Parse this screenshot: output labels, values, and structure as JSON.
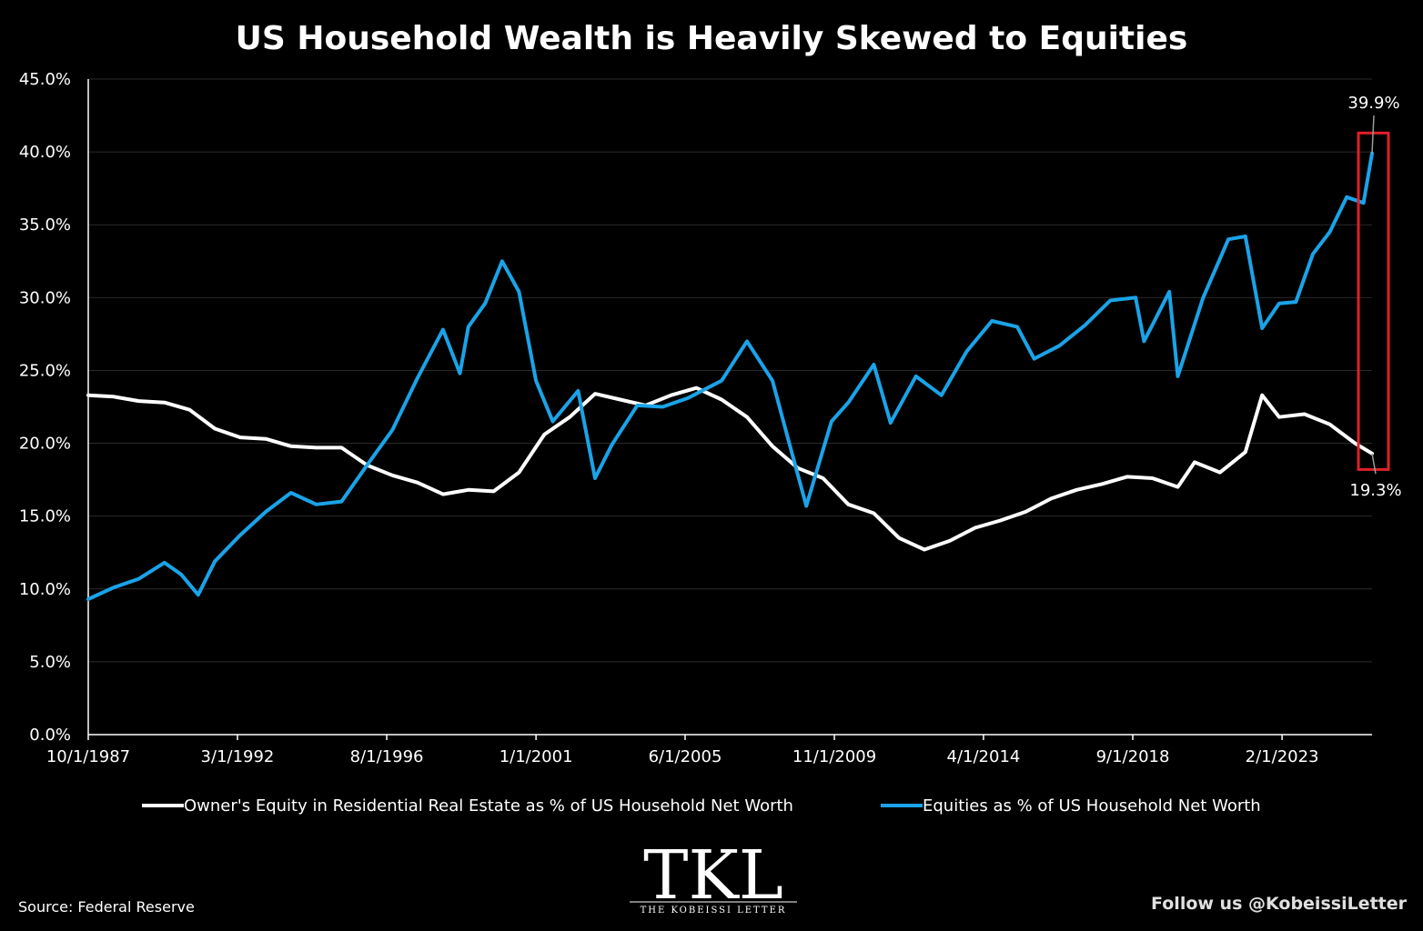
{
  "colors": {
    "background": "#000000",
    "text": "#ffffff",
    "grid": "#2a2a2a",
    "real_estate_line": "#ffffff",
    "equities_line": "#1aa3e8",
    "highlight_box": "#e0202a"
  },
  "source": "Source: Federal Reserve",
  "follow": "Follow us @KobeissiLetter",
  "logo": {
    "mark": "TKL",
    "name": "THE KOBEISSI LETTER"
  },
  "chart_data": {
    "type": "line",
    "title": "US Household Wealth is Heavily Skewed to Equities",
    "xlabel": "",
    "ylabel": "",
    "ylim": [
      0,
      45
    ],
    "grid": true,
    "legend_position": "bottom",
    "y_ticks": [
      "0.0%",
      "5.0%",
      "10.0%",
      "15.0%",
      "20.0%",
      "25.0%",
      "30.0%",
      "35.0%",
      "40.0%",
      "45.0%"
    ],
    "x_ticks": [
      "10/1/1987",
      "3/1/1992",
      "8/1/1996",
      "1/1/2001",
      "6/1/2005",
      "11/1/2009",
      "4/1/2014",
      "9/1/2018",
      "2/1/2023"
    ],
    "x_range": [
      "10/1/1987",
      "1/1/2025"
    ],
    "series": [
      {
        "name": "Owner's Equity in Residential Real Estate as % of US Household Net Worth",
        "color": "#ffffff",
        "points": [
          [
            "1987-10-01",
            23.3
          ],
          [
            "1988-07-01",
            23.2
          ],
          [
            "1989-04-01",
            22.9
          ],
          [
            "1990-01-01",
            22.8
          ],
          [
            "1990-10-01",
            22.3
          ],
          [
            "1991-07-01",
            21.0
          ],
          [
            "1992-04-01",
            20.4
          ],
          [
            "1993-01-01",
            20.3
          ],
          [
            "1993-10-01",
            19.8
          ],
          [
            "1994-07-01",
            19.7
          ],
          [
            "1995-04-01",
            19.7
          ],
          [
            "1996-01-01",
            18.5
          ],
          [
            "1996-10-01",
            17.8
          ],
          [
            "1997-07-01",
            17.3
          ],
          [
            "1998-04-01",
            16.5
          ],
          [
            "1999-01-01",
            16.8
          ],
          [
            "1999-10-01",
            16.7
          ],
          [
            "2000-07-01",
            18.0
          ],
          [
            "2001-04-01",
            20.6
          ],
          [
            "2002-01-01",
            21.8
          ],
          [
            "2002-10-01",
            23.4
          ],
          [
            "2003-07-01",
            23.0
          ],
          [
            "2004-04-01",
            22.6
          ],
          [
            "2005-01-01",
            23.3
          ],
          [
            "2005-10-01",
            23.8
          ],
          [
            "2006-07-01",
            23.0
          ],
          [
            "2007-04-01",
            21.8
          ],
          [
            "2008-01-01",
            19.8
          ],
          [
            "2008-10-01",
            18.3
          ],
          [
            "2009-07-01",
            17.6
          ],
          [
            "2010-04-01",
            15.8
          ],
          [
            "2011-01-01",
            15.2
          ],
          [
            "2011-10-01",
            13.5
          ],
          [
            "2012-07-01",
            12.7
          ],
          [
            "2013-04-01",
            13.3
          ],
          [
            "2014-01-01",
            14.2
          ],
          [
            "2014-10-01",
            14.7
          ],
          [
            "2015-07-01",
            15.3
          ],
          [
            "2016-04-01",
            16.2
          ],
          [
            "2017-01-01",
            16.8
          ],
          [
            "2017-10-01",
            17.2
          ],
          [
            "2018-07-01",
            17.7
          ],
          [
            "2019-04-01",
            17.6
          ],
          [
            "2020-01-01",
            17.0
          ],
          [
            "2020-07-01",
            18.7
          ],
          [
            "2021-04-01",
            18.0
          ],
          [
            "2022-01-01",
            19.4
          ],
          [
            "2022-07-01",
            23.3
          ],
          [
            "2023-01-01",
            21.8
          ],
          [
            "2023-10-01",
            22.0
          ],
          [
            "2024-07-01",
            21.3
          ],
          [
            "2025-04-01",
            20.0
          ],
          [
            "2025-10-01",
            19.3
          ]
        ]
      },
      {
        "name": "Equities as % of US Household Net Worth",
        "color": "#1aa3e8",
        "points": [
          [
            "1987-10-01",
            9.3
          ],
          [
            "1988-07-01",
            10.1
          ],
          [
            "1989-04-01",
            10.7
          ],
          [
            "1990-01-01",
            11.8
          ],
          [
            "1990-07-01",
            11.0
          ],
          [
            "1991-01-01",
            9.6
          ],
          [
            "1991-07-01",
            11.9
          ],
          [
            "1992-04-01",
            13.7
          ],
          [
            "1993-01-01",
            15.3
          ],
          [
            "1993-10-01",
            16.6
          ],
          [
            "1994-07-01",
            15.8
          ],
          [
            "1995-04-01",
            16.0
          ],
          [
            "1996-01-01",
            18.5
          ],
          [
            "1996-10-01",
            20.9
          ],
          [
            "1997-07-01",
            24.5
          ],
          [
            "1998-04-01",
            27.8
          ],
          [
            "1998-10-01",
            24.8
          ],
          [
            "1999-01-01",
            28.0
          ],
          [
            "1999-07-01",
            29.6
          ],
          [
            "2000-01-01",
            32.5
          ],
          [
            "2000-07-01",
            30.4
          ],
          [
            "2001-01-01",
            24.3
          ],
          [
            "2001-07-01",
            21.5
          ],
          [
            "2002-04-01",
            23.6
          ],
          [
            "2002-10-01",
            17.6
          ],
          [
            "2003-04-01",
            19.9
          ],
          [
            "2004-01-01",
            22.6
          ],
          [
            "2004-10-01",
            22.5
          ],
          [
            "2005-07-01",
            23.1
          ],
          [
            "2006-07-01",
            24.3
          ],
          [
            "2007-04-01",
            27.0
          ],
          [
            "2008-01-01",
            24.3
          ],
          [
            "2008-07-01",
            20.0
          ],
          [
            "2009-01-01",
            15.7
          ],
          [
            "2009-10-01",
            21.5
          ],
          [
            "2010-04-01",
            22.8
          ],
          [
            "2011-01-01",
            25.4
          ],
          [
            "2011-07-01",
            21.4
          ],
          [
            "2012-04-01",
            24.6
          ],
          [
            "2013-01-01",
            23.3
          ],
          [
            "2013-10-01",
            26.3
          ],
          [
            "2014-07-01",
            28.4
          ],
          [
            "2015-04-01",
            28.0
          ],
          [
            "2015-10-01",
            25.8
          ],
          [
            "2016-07-01",
            26.7
          ],
          [
            "2017-04-01",
            28.1
          ],
          [
            "2018-01-01",
            29.8
          ],
          [
            "2018-10-01",
            30.0
          ],
          [
            "2019-01-01",
            27.0
          ],
          [
            "2019-10-01",
            30.4
          ],
          [
            "2020-01-01",
            24.6
          ],
          [
            "2020-10-01",
            30.0
          ],
          [
            "2021-07-01",
            34.0
          ],
          [
            "2022-01-01",
            34.2
          ],
          [
            "2022-07-01",
            27.9
          ],
          [
            "2023-01-01",
            29.6
          ],
          [
            "2023-07-01",
            29.7
          ],
          [
            "2024-01-01",
            33.0
          ],
          [
            "2024-07-01",
            34.5
          ],
          [
            "2025-01-01",
            36.9
          ],
          [
            "2025-07-01",
            36.5
          ],
          [
            "2025-10-01",
            39.9
          ]
        ]
      }
    ],
    "annotations": [
      {
        "text": "39.9%",
        "series": 1
      },
      {
        "text": "19.3%",
        "series": 0
      }
    ]
  }
}
